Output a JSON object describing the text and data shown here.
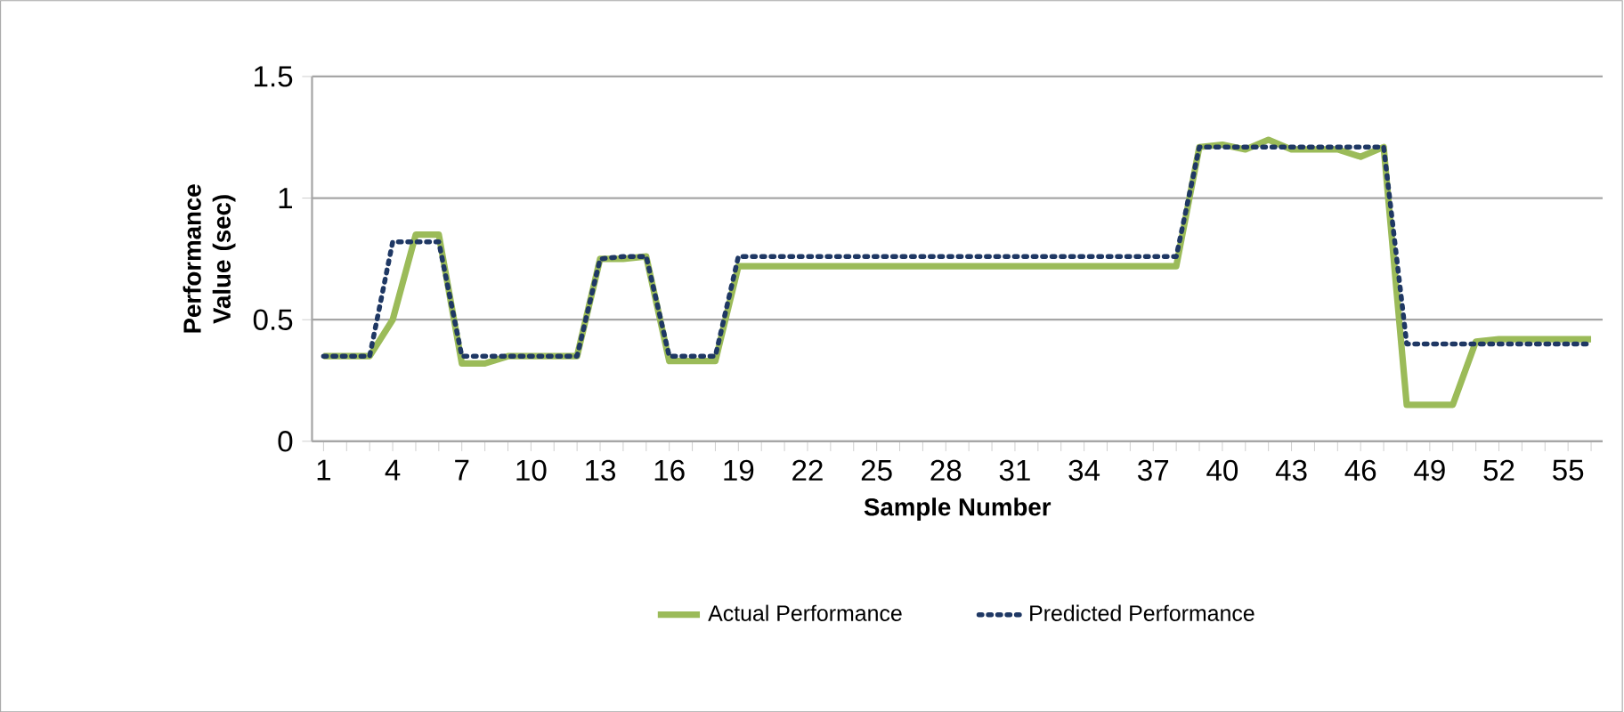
{
  "chart_data": {
    "type": "line",
    "ylabel": "Performance Value (sec)",
    "xlabel": "Sample Number",
    "categories": [
      "1",
      null,
      null,
      "4",
      null,
      null,
      "7",
      null,
      null,
      "10",
      null,
      null,
      "13",
      null,
      null,
      "16",
      null,
      null,
      "19",
      null,
      null,
      "22",
      null,
      null,
      "25",
      null,
      null,
      "28",
      null,
      null,
      "31",
      null,
      null,
      "34",
      null,
      null,
      "37",
      null,
      null,
      "40",
      null,
      null,
      "43",
      null,
      null,
      "46",
      null,
      null,
      "49",
      null,
      null,
      "52",
      null,
      null,
      "55",
      null
    ],
    "series": [
      {
        "name": "Actual Performance",
        "color": "#9bbb59",
        "line_style": "solid",
        "values": [
          0.35,
          0.35,
          0.35,
          0.5,
          0.85,
          0.85,
          0.32,
          0.32,
          0.35,
          0.35,
          0.35,
          0.35,
          0.75,
          0.75,
          0.76,
          0.33,
          0.33,
          0.33,
          0.72,
          0.72,
          0.72,
          0.72,
          0.72,
          0.72,
          0.72,
          0.72,
          0.72,
          0.72,
          0.72,
          0.72,
          0.72,
          0.72,
          0.72,
          0.72,
          0.72,
          0.72,
          0.72,
          0.72,
          1.21,
          1.22,
          1.2,
          1.24,
          1.2,
          1.2,
          1.2,
          1.17,
          1.21,
          0.15,
          0.15,
          0.15,
          0.41,
          0.42,
          0.42,
          0.42,
          0.42,
          0.42
        ]
      },
      {
        "name": "Predicted Performance",
        "color": "#1f3864",
        "line_style": "dotted",
        "values": [
          0.35,
          0.35,
          0.35,
          0.82,
          0.82,
          0.82,
          0.35,
          0.35,
          0.35,
          0.35,
          0.35,
          0.35,
          0.75,
          0.76,
          0.76,
          0.35,
          0.35,
          0.35,
          0.76,
          0.76,
          0.76,
          0.76,
          0.76,
          0.76,
          0.76,
          0.76,
          0.76,
          0.76,
          0.76,
          0.76,
          0.76,
          0.76,
          0.76,
          0.76,
          0.76,
          0.76,
          0.76,
          0.76,
          1.21,
          1.21,
          1.21,
          1.21,
          1.21,
          1.21,
          1.21,
          1.21,
          1.21,
          0.4,
          0.4,
          0.4,
          0.4,
          0.4,
          0.4,
          0.4,
          0.4,
          0.4
        ]
      }
    ],
    "ylim": [
      0,
      1.5
    ],
    "yticks": [
      0,
      0.5,
      1,
      1.5
    ],
    "grid": "y",
    "legend": "bottom",
    "marker": "none"
  }
}
